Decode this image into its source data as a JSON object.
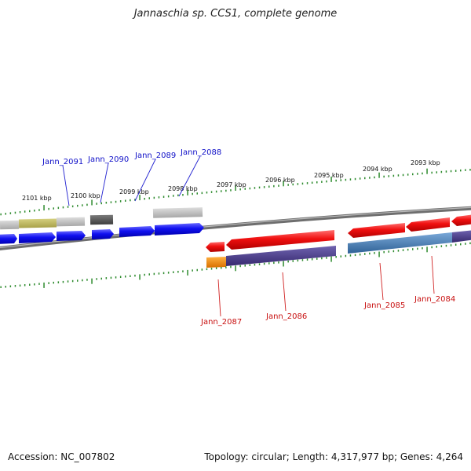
{
  "title": "Jannaschia sp. CCS1, complete genome",
  "footer": {
    "accession": "Accession: NC_007802",
    "summary": "Topology: circular; Length: 4,317,977 bp; Genes: 4,264"
  },
  "scale_ticks": [
    "2101 kbp",
    "2100 kbp",
    "2099 kbp",
    "2098 kbp",
    "2097 kbp",
    "2096 kbp",
    "2095 kbp",
    "2094 kbp",
    "2093 kbp"
  ],
  "top_labels": [
    "Jann_2091",
    "Jann_2090",
    "Jann_2089",
    "Jann_2088"
  ],
  "bottom_labels": [
    "Jann_2087",
    "Jann_2086",
    "Jann_2085",
    "Jann_2084"
  ],
  "colors": {
    "forward_gene": "#0a0aee",
    "reverse_gene": "#ee0a0a",
    "forward_label": "#1010c8",
    "reverse_label": "#c81010",
    "backbone": "#808080",
    "scale": "#2e8b2e",
    "cog_olive": "#b8b258",
    "cog_gray": "#bdbdbd",
    "cog_dark": "#5a5a5a",
    "cog_purple": "#4a3f8c",
    "cog_steel": "#4a7fb8",
    "cog_orange": "#f09020"
  }
}
